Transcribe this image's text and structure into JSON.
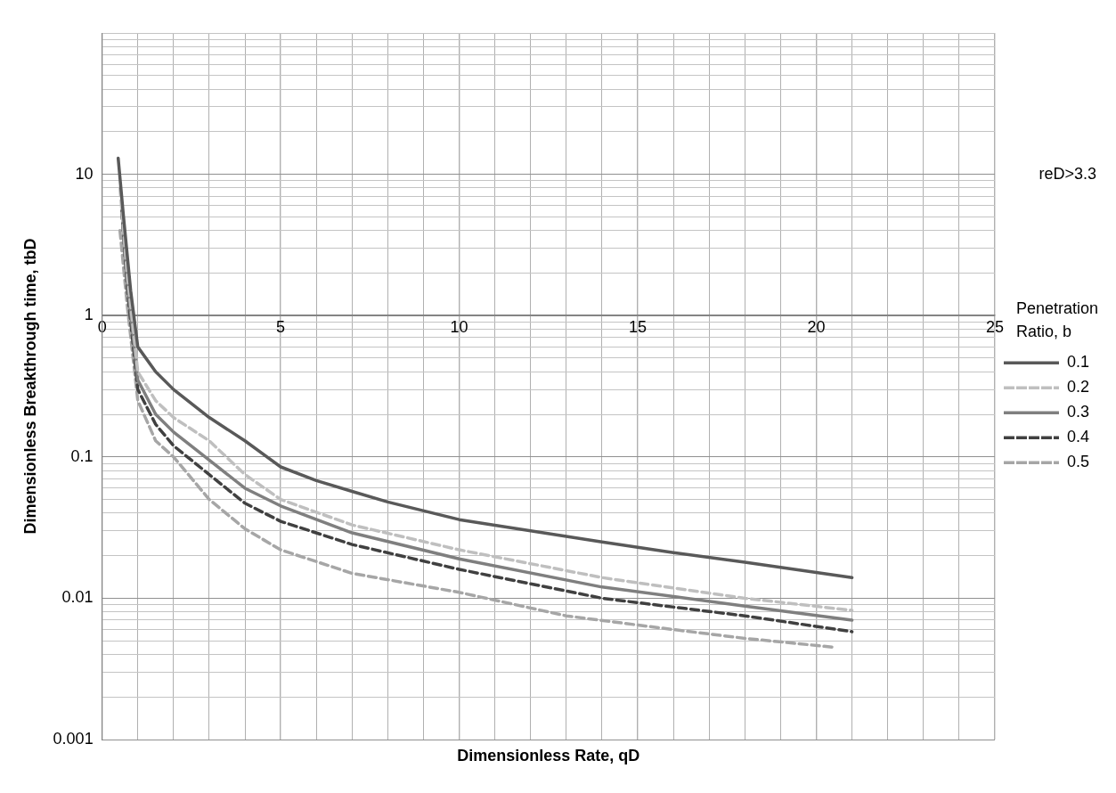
{
  "chart_data": {
    "type": "line",
    "xlabel": "Dimensionless Rate, qD",
    "ylabel": "Dimensionless Breakthrough time, tbD",
    "legend_title": "Penetration Ratio, b",
    "legend": "right",
    "grid": true,
    "log": "y",
    "marker": "none",
    "annotations": [
      "reD>3.3"
    ],
    "xlim": [
      0,
      25
    ],
    "xticks": [
      0,
      {
        "value": 1,
        "label": null
      },
      {
        "value": 2,
        "label": null
      },
      {
        "value": 3,
        "label": null
      },
      {
        "value": 4,
        "label": null
      },
      5,
      {
        "value": 6,
        "label": null
      },
      {
        "value": 7,
        "label": null
      },
      {
        "value": 8,
        "label": null
      },
      {
        "value": 9,
        "label": null
      },
      10,
      {
        "value": 11,
        "label": null
      },
      {
        "value": 12,
        "label": null
      },
      {
        "value": 13,
        "label": null
      },
      {
        "value": 14,
        "label": null
      },
      15,
      {
        "value": 16,
        "label": null
      },
      {
        "value": 17,
        "label": null
      },
      {
        "value": 18,
        "label": null
      },
      {
        "value": 19,
        "label": null
      },
      20,
      {
        "value": 21,
        "label": null
      },
      {
        "value": 22,
        "label": null
      },
      {
        "value": 23,
        "label": null
      },
      {
        "value": 24,
        "label": null
      },
      25
    ],
    "ylim": [
      0.001,
      100
    ],
    "yticks": [
      0.001,
      {
        "value": 0.002,
        "label": null
      },
      {
        "value": 0.003,
        "label": null
      },
      {
        "value": 0.004,
        "label": null
      },
      {
        "value": 0.005,
        "label": null
      },
      {
        "value": 0.006,
        "label": null
      },
      {
        "value": 0.007,
        "label": null
      },
      {
        "value": 0.008,
        "label": null
      },
      {
        "value": 0.009,
        "label": null
      },
      0.01,
      {
        "value": 0.02,
        "label": null
      },
      {
        "value": 0.03,
        "label": null
      },
      {
        "value": 0.04,
        "label": null
      },
      {
        "value": 0.05,
        "label": null
      },
      {
        "value": 0.06,
        "label": null
      },
      {
        "value": 0.07,
        "label": null
      },
      {
        "value": 0.08,
        "label": null
      },
      {
        "value": 0.09,
        "label": null
      },
      0.1,
      {
        "value": 0.2,
        "label": null
      },
      {
        "value": 0.3,
        "label": null
      },
      {
        "value": 0.4,
        "label": null
      },
      {
        "value": 0.5,
        "label": null
      },
      {
        "value": 0.6,
        "label": null
      },
      {
        "value": 0.7,
        "label": null
      },
      {
        "value": 0.8,
        "label": null
      },
      {
        "value": 0.9,
        "label": null
      },
      1,
      {
        "value": 2,
        "label": null
      },
      {
        "value": 3,
        "label": null
      },
      {
        "value": 4,
        "label": null
      },
      {
        "value": 5,
        "label": null
      },
      {
        "value": 6,
        "label": null
      },
      {
        "value": 7,
        "label": null
      },
      {
        "value": 8,
        "label": null
      },
      {
        "value": 9,
        "label": null
      },
      10,
      {
        "value": 20,
        "label": null
      },
      {
        "value": 30,
        "label": null
      },
      {
        "value": 40,
        "label": null
      },
      {
        "value": 50,
        "label": null
      },
      {
        "value": 60,
        "label": null
      },
      {
        "value": 70,
        "label": null
      },
      {
        "value": 80,
        "label": null
      },
      {
        "value": 90,
        "label": null
      },
      {
        "value": 100,
        "label": null
      }
    ],
    "series": [
      {
        "name": "0.1",
        "color": "#595959",
        "line_style": "solid",
        "x": [
          0.45,
          0.6,
          0.8,
          1,
          1.5,
          2,
          3,
          4,
          5,
          6,
          7,
          8,
          10,
          12,
          14,
          16,
          18,
          21
        ],
        "values": [
          13,
          5,
          1.5,
          0.6,
          0.4,
          0.3,
          0.19,
          0.13,
          0.085,
          0.068,
          0.057,
          0.048,
          0.036,
          0.03,
          0.025,
          0.021,
          0.018,
          0.014
        ]
      },
      {
        "name": "0.2",
        "color": "#bfbfbf",
        "line_style": "dashed",
        "x": [
          0.5,
          0.7,
          1,
          1.5,
          2,
          3,
          4,
          5,
          7,
          10,
          14,
          18,
          21
        ],
        "values": [
          8,
          2,
          0.4,
          0.25,
          0.19,
          0.13,
          0.075,
          0.05,
          0.033,
          0.022,
          0.014,
          0.01,
          0.0082
        ]
      },
      {
        "name": "0.3",
        "color": "#7f7f7f",
        "line_style": "solid",
        "x": [
          0.55,
          0.7,
          1,
          1.5,
          2,
          3,
          4,
          5,
          7,
          10,
          14,
          18,
          21
        ],
        "values": [
          6,
          1.8,
          0.35,
          0.2,
          0.15,
          0.095,
          0.06,
          0.045,
          0.029,
          0.019,
          0.012,
          0.0088,
          0.007
        ]
      },
      {
        "name": "0.4",
        "color": "#404040",
        "line_style": "dashed",
        "x": [
          0.55,
          0.7,
          1,
          1.5,
          2,
          3,
          4,
          5,
          7,
          10,
          14,
          18,
          21
        ],
        "values": [
          5.5,
          1.6,
          0.3,
          0.17,
          0.12,
          0.075,
          0.047,
          0.035,
          0.024,
          0.016,
          0.01,
          0.0075,
          0.0058
        ]
      },
      {
        "name": "0.5",
        "color": "#a6a6a6",
        "line_style": "dashed",
        "x": [
          0.5,
          0.7,
          1,
          1.5,
          2,
          3,
          4,
          5,
          7,
          10,
          13,
          16,
          18,
          20.5
        ],
        "values": [
          4,
          1.2,
          0.25,
          0.13,
          0.1,
          0.05,
          0.031,
          0.022,
          0.015,
          0.011,
          0.0075,
          0.006,
          0.0052,
          0.0045
        ]
      }
    ]
  }
}
